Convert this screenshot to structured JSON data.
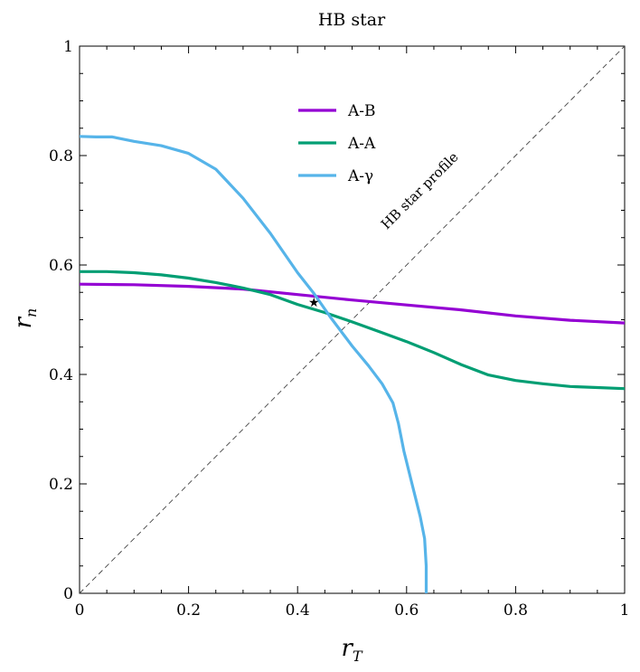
{
  "chart_data": {
    "type": "line",
    "title": "HB star",
    "xlabel": {
      "base": "r",
      "sub": "T"
    },
    "ylabel": {
      "base": "r",
      "sub": "n"
    },
    "xlim": [
      0,
      1
    ],
    "ylim": [
      0,
      1
    ],
    "xticks": [
      0,
      0.2,
      0.4,
      0.6,
      0.8,
      1
    ],
    "yticks": [
      0,
      0.2,
      0.4,
      0.6,
      0.8,
      1
    ],
    "xtick_labels": [
      "0",
      "0.2",
      "0.4",
      "0.6",
      "0.8",
      "1"
    ],
    "ytick_labels": [
      "0",
      "0.2",
      "0.4",
      "0.6",
      "0.8",
      "1"
    ],
    "grid": false,
    "legend_position": "top-center",
    "series": [
      {
        "name": "A-B",
        "color": "#9400D3",
        "x": [
          0,
          0.1,
          0.2,
          0.3,
          0.4,
          0.5,
          0.6,
          0.7,
          0.8,
          0.9,
          1.0
        ],
        "y": [
          0.565,
          0.564,
          0.561,
          0.556,
          0.546,
          0.536,
          0.527,
          0.518,
          0.507,
          0.499,
          0.494
        ]
      },
      {
        "name": "A-A",
        "color": "#009E73",
        "x": [
          0,
          0.05,
          0.1,
          0.15,
          0.2,
          0.25,
          0.3,
          0.35,
          0.4,
          0.45,
          0.5,
          0.55,
          0.6,
          0.65,
          0.7,
          0.75,
          0.8,
          0.85,
          0.9,
          0.95,
          1.0
        ],
        "y": [
          0.588,
          0.588,
          0.586,
          0.582,
          0.576,
          0.568,
          0.558,
          0.546,
          0.528,
          0.513,
          0.496,
          0.478,
          0.46,
          0.44,
          0.418,
          0.399,
          0.389,
          0.383,
          0.378,
          0.376,
          0.374
        ]
      },
      {
        "name": "A-γ",
        "color": "#56B4E9",
        "x": [
          0,
          0.03,
          0.06,
          0.1,
          0.15,
          0.2,
          0.25,
          0.3,
          0.35,
          0.4,
          0.43,
          0.46,
          0.5,
          0.53,
          0.555,
          0.575,
          0.585,
          0.595,
          0.61,
          0.625,
          0.633,
          0.636,
          0.636
        ],
        "y": [
          0.835,
          0.834,
          0.834,
          0.826,
          0.818,
          0.804,
          0.775,
          0.722,
          0.658,
          0.586,
          0.548,
          0.505,
          0.452,
          0.416,
          0.383,
          0.348,
          0.31,
          0.26,
          0.2,
          0.14,
          0.1,
          0.05,
          0.0
        ]
      }
    ],
    "reference_line": {
      "label": "HB star profile",
      "x": [
        0,
        1
      ],
      "y": [
        0,
        1
      ]
    },
    "marker": {
      "symbol": "★",
      "x": 0.43,
      "y": 0.532
    }
  }
}
